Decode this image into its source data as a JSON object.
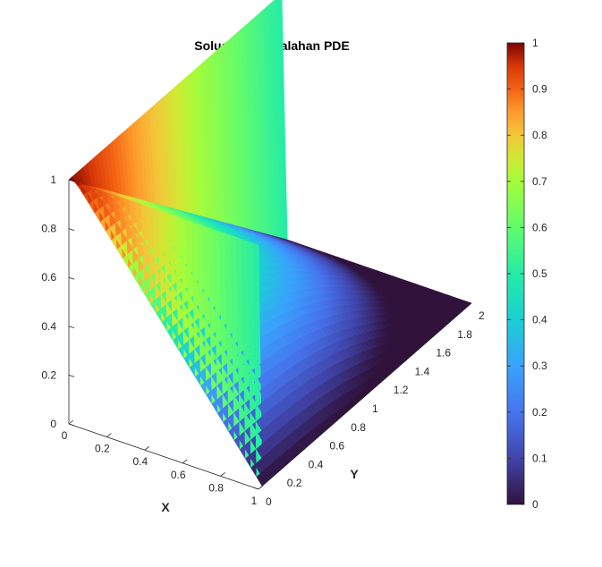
{
  "chart_data": {
    "type": "surface",
    "title": "Solusi Permasalahan PDE",
    "xlabel": "X",
    "ylabel": "Y",
    "zlabel": "",
    "xlim": [
      0,
      1
    ],
    "ylim": [
      0,
      2
    ],
    "zlim": [
      0,
      1
    ],
    "x_ticks": [
      "0",
      "0.2",
      "0.4",
      "0.6",
      "0.8",
      "1"
    ],
    "y_ticks": [
      "0",
      "0.2",
      "0.4",
      "0.6",
      "0.8",
      "1",
      "1.2",
      "1.4",
      "1.6",
      "1.8",
      "2"
    ],
    "z_ticks": [
      "0",
      "0.2",
      "0.4",
      "0.6",
      "0.8",
      "1"
    ],
    "colorbar": {
      "range": [
        0,
        1
      ],
      "ticks": [
        "0",
        "0.1",
        "0.2",
        "0.3",
        "0.4",
        "0.5",
        "0.6",
        "0.7",
        "0.8",
        "0.9",
        "1"
      ],
      "colormap": "turbo"
    },
    "boundary_conditions": {
      "u_at_x_0": 1,
      "u_at_y_0": 1,
      "u_at_x_1": 0,
      "u_at_y_2": 0
    },
    "grid": false
  }
}
